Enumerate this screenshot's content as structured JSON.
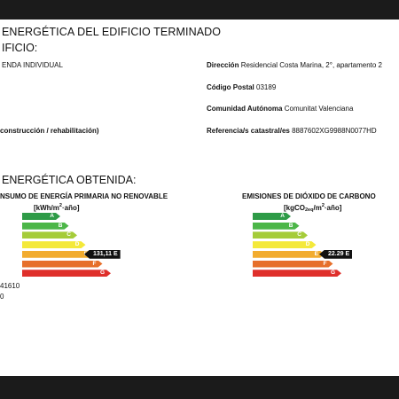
{
  "header": {
    "title": "ENERGÉTICA DEL EDIFICIO TERMINADO",
    "subtitle": "IFICIO:"
  },
  "building": {
    "type_value": "ENDA INDIVIDUAL",
    "construction_label": "construcción / rehabilitación)",
    "direccion_label": "Dirección",
    "direccion_value": "Residencial Costa Marina, 2°, apartamento 2",
    "cp_label": "Código Postal",
    "cp_value": "03189",
    "ca_label": "Comunidad Autónoma",
    "ca_value": "Comunitat Valenciana",
    "ref_label": "Referencia/s catastral/es",
    "ref_value": "8887602XG9988N0077HD"
  },
  "rating": {
    "heading": "ENERGÉTICA OBTENIDA:",
    "left_extra_1": "41610",
    "left_extra_2": "0"
  },
  "consumption_chart": {
    "title": "NSUMO DE ENERGÍA PRIMARIA NO RENOVABLE",
    "unit_prefix": "[kWh/m",
    "unit_sup": "2",
    "unit_suffix": "·año]",
    "value_label": "131,11 E"
  },
  "emissions_chart": {
    "title": "EMISIONES DE DIÓXIDO DE CARBONO",
    "unit_prefix": "[kgCO",
    "unit_sub": "2eq",
    "unit_mid": "/m",
    "unit_sup": "2",
    "unit_suffix": "·año]",
    "value_label": "22.29 E"
  },
  "chart_data": [
    {
      "type": "bar",
      "title": "NSUMO DE ENERGÍA PRIMARIA NO RENOVABLE",
      "categories": [
        "A",
        "B",
        "C",
        "D",
        "E",
        "F",
        "G"
      ],
      "colors": [
        "#2e9b47",
        "#4cb648",
        "#a5cc39",
        "#f4e93a",
        "#f2ac2f",
        "#e66f2a",
        "#df2f2b"
      ],
      "selected": "E",
      "value": 131.11
    },
    {
      "type": "bar",
      "title": "EMISIONES DE DIÓXIDO DE CARBONO",
      "categories": [
        "A",
        "B",
        "C",
        "D",
        "E",
        "F",
        "G"
      ],
      "colors": [
        "#2e9b47",
        "#4cb648",
        "#a5cc39",
        "#f4e93a",
        "#f2ac2f",
        "#e66f2a",
        "#df2f2b"
      ],
      "selected": "E",
      "value": 22.29
    }
  ]
}
